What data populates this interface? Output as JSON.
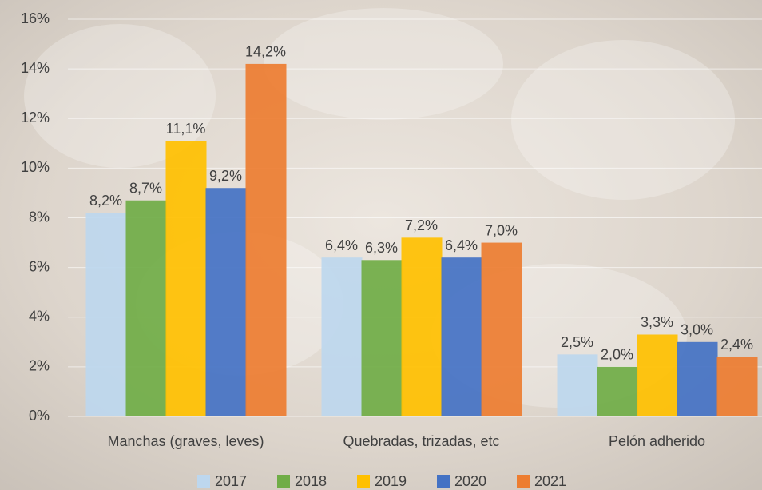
{
  "chart_data": {
    "type": "bar",
    "categories": [
      "Manchas (graves, leves)",
      "Quebradas, trizadas, etc",
      "Pelón adherido"
    ],
    "series": [
      {
        "name": "2017",
        "color": "#bdd7ee",
        "values": [
          8.2,
          6.4,
          2.5
        ],
        "value_labels": [
          "8,2%",
          "6,4%",
          "2,5%"
        ]
      },
      {
        "name": "2018",
        "color": "#70ad47",
        "values": [
          8.7,
          6.3,
          2.0
        ],
        "value_labels": [
          "8,7%",
          "6,3%",
          "2,0%"
        ]
      },
      {
        "name": "2019",
        "color": "#ffc000",
        "values": [
          11.1,
          7.2,
          3.3
        ],
        "value_labels": [
          "11,1%",
          "7,2%",
          "3,3%"
        ]
      },
      {
        "name": "2020",
        "color": "#4472c4",
        "values": [
          9.2,
          6.4,
          3.0
        ],
        "value_labels": [
          "9,2%",
          "6,4%",
          "3,0%"
        ]
      },
      {
        "name": "2021",
        "color": "#ed7d31",
        "values": [
          14.2,
          7.0,
          2.4
        ],
        "value_labels": [
          "14,2%",
          "7,0%",
          "2,4%"
        ]
      }
    ],
    "ylim": [
      0,
      16
    ],
    "yticks": [
      {
        "value": 0,
        "label": "0%"
      },
      {
        "value": 2,
        "label": "2%"
      },
      {
        "value": 4,
        "label": "4%"
      },
      {
        "value": 6,
        "label": "6%"
      },
      {
        "value": 8,
        "label": "8%"
      },
      {
        "value": 10,
        "label": "10%"
      },
      {
        "value": 12,
        "label": "12%"
      },
      {
        "value": 14,
        "label": "14%"
      },
      {
        "value": 16,
        "label": "16%"
      }
    ],
    "grid": true,
    "legend": "bottom"
  }
}
